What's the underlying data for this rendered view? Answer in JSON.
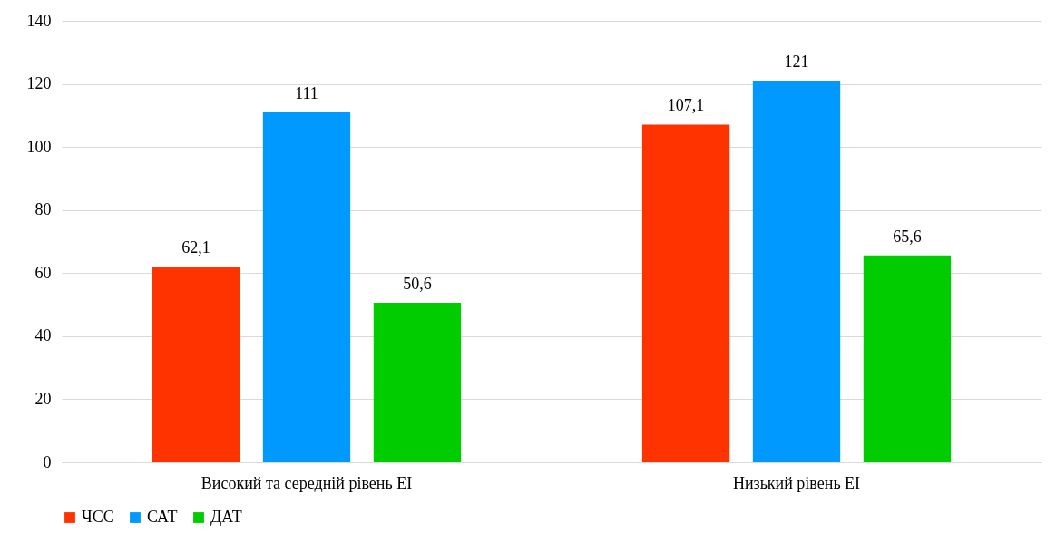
{
  "chart_data": {
    "type": "bar",
    "categories": [
      "Високий та середній рівень ЕІ",
      "Низький рівень ЕІ"
    ],
    "series": [
      {
        "name": "ЧСС",
        "color": "#ff3300",
        "values": [
          62.1,
          107.1
        ],
        "value_labels": [
          "62,1",
          "107,1"
        ]
      },
      {
        "name": "САТ",
        "color": "#0099ff",
        "values": [
          111,
          121
        ],
        "value_labels": [
          "111",
          "121"
        ]
      },
      {
        "name": "ДАТ",
        "color": "#00cc00",
        "values": [
          50.6,
          65.6
        ],
        "value_labels": [
          "50,6",
          "65,6"
        ]
      }
    ],
    "ylim": [
      0,
      140
    ],
    "yticks": [
      0,
      20,
      40,
      60,
      80,
      100,
      120,
      140
    ],
    "grid": "y",
    "legend": "bottom"
  }
}
